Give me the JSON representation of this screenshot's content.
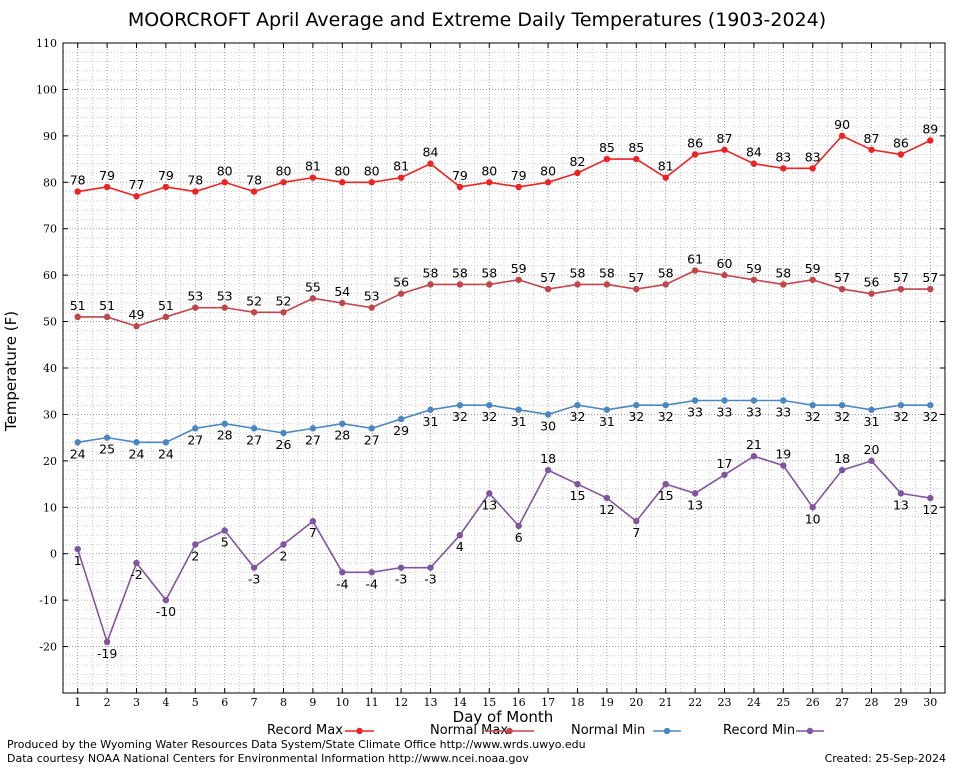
{
  "footer": {
    "produced_by": "Produced by the Wyoming Water Resources Data System/State Climate Office http://www.wrds.uwyo.edu",
    "courtesy": "Data courtesy NOAA National Centers for Environmental Information http://www.ncei.noaa.gov",
    "created": "Created:  25-Sep-2024"
  },
  "chart_data": {
    "type": "line",
    "title": "MOORCROFT April Average and Extreme Daily Temperatures (1903-2024)",
    "xlabel": "Day of Month",
    "ylabel": "Temperature (F)",
    "ylim": [
      -30,
      110
    ],
    "yticks": [
      -20,
      -10,
      0,
      10,
      20,
      30,
      40,
      50,
      60,
      70,
      80,
      90,
      100,
      110
    ],
    "x": [
      1,
      2,
      3,
      4,
      5,
      6,
      7,
      8,
      9,
      10,
      11,
      12,
      13,
      14,
      15,
      16,
      17,
      18,
      19,
      20,
      21,
      22,
      23,
      24,
      25,
      26,
      27,
      28,
      29,
      30
    ],
    "grid": true,
    "legend_position": "bottom",
    "series": [
      {
        "name": "Record Max",
        "color": "#ee2222",
        "values": [
          78,
          79,
          77,
          79,
          78,
          80,
          78,
          80,
          81,
          80,
          80,
          81,
          84,
          79,
          80,
          79,
          80,
          82,
          85,
          85,
          81,
          86,
          87,
          84,
          83,
          83,
          90,
          87,
          86,
          89
        ]
      },
      {
        "name": "Normal Max",
        "color": "#c0464a",
        "values": [
          51,
          51,
          49,
          51,
          53,
          53,
          52,
          52,
          55,
          54,
          53,
          56,
          58,
          58,
          58,
          59,
          57,
          58,
          58,
          57,
          58,
          61,
          60,
          59,
          58,
          59,
          57,
          56,
          57,
          57
        ]
      },
      {
        "name": "Normal Min",
        "color": "#4a86c0",
        "values": [
          24,
          25,
          24,
          24,
          27,
          28,
          27,
          26,
          27,
          28,
          27,
          29,
          31,
          32,
          32,
          31,
          30,
          32,
          31,
          32,
          32,
          33,
          33,
          33,
          33,
          32,
          32,
          31,
          32,
          32
        ]
      },
      {
        "name": "Record Min",
        "color": "#8055a0",
        "values": [
          1,
          -19,
          -2,
          -10,
          2,
          5,
          -3,
          2,
          7,
          -4,
          -4,
          -3,
          -3,
          4,
          13,
          6,
          18,
          15,
          12,
          7,
          15,
          13,
          17,
          21,
          19,
          10,
          18,
          20,
          13,
          12
        ]
      }
    ]
  }
}
